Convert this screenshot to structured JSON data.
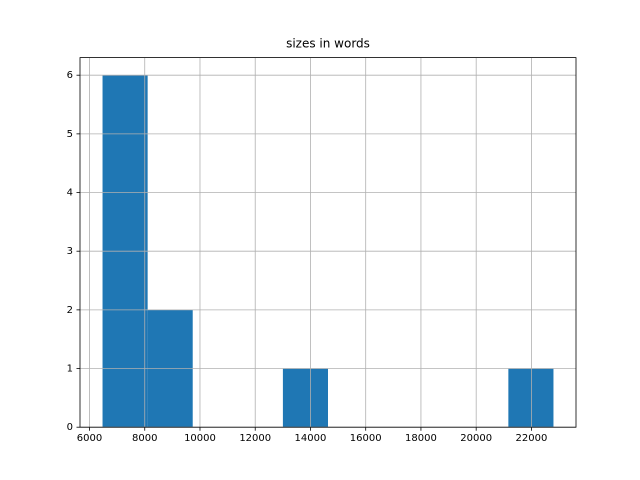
{
  "chart_data": {
    "type": "histogram",
    "title": "sizes in words",
    "bins": [
      6472,
      8105,
      9737,
      11370,
      13002,
      14635,
      16268,
      17900,
      19533,
      21165,
      22798
    ],
    "values": [
      6,
      2,
      0,
      0,
      1,
      0,
      0,
      0,
      0,
      1
    ],
    "color": "#1f77b4",
    "xlim": [
      5656,
      23614
    ],
    "xticks": [
      6000,
      8000,
      10000,
      12000,
      14000,
      16000,
      18000,
      20000,
      22000
    ],
    "ylim": [
      0,
      6.3
    ],
    "yticks": [
      0,
      1,
      2,
      3,
      4,
      5,
      6
    ],
    "grid": true
  }
}
